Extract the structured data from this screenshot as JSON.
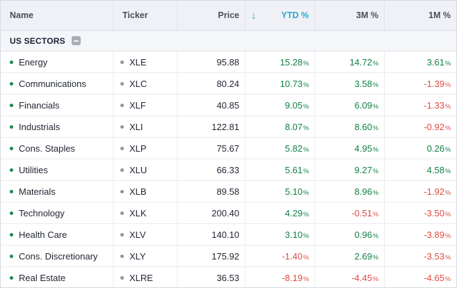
{
  "colors": {
    "sorted_accent": "#2aa8ce",
    "positive_value": "#0f8043",
    "negative_value": "#e04a41",
    "name_bullet": "#188a4c",
    "ticker_bullet": "#90949c"
  },
  "table": {
    "columns": [
      {
        "label": "Name"
      },
      {
        "label": "Ticker"
      },
      {
        "label": "Price"
      },
      {
        "label": "YTD %"
      },
      {
        "label": "3M %"
      },
      {
        "label": "1M %"
      }
    ],
    "sort": {
      "column": "YTD %",
      "direction": "descending",
      "icon": "↓"
    },
    "group": {
      "label": "US SECTORS"
    },
    "percent_suffix": "%",
    "rows": [
      {
        "name": "Energy",
        "ticker": "XLE",
        "price": "95.88",
        "ytd_pct": "15.28",
        "m3_pct": "14.72",
        "m1_pct": "3.61"
      },
      {
        "name": "Communications",
        "ticker": "XLC",
        "price": "80.24",
        "ytd_pct": "10.73",
        "m3_pct": "3.58",
        "m1_pct": "-1.39"
      },
      {
        "name": "Financials",
        "ticker": "XLF",
        "price": "40.85",
        "ytd_pct": "9.05",
        "m3_pct": "6.09",
        "m1_pct": "-1.33"
      },
      {
        "name": "Industrials",
        "ticker": "XLI",
        "price": "122.81",
        "ytd_pct": "8.07",
        "m3_pct": "8.60",
        "m1_pct": "-0.92"
      },
      {
        "name": "Cons. Staples",
        "ticker": "XLP",
        "price": "75.67",
        "ytd_pct": "5.82",
        "m3_pct": "4.95",
        "m1_pct": "0.26"
      },
      {
        "name": "Utilities",
        "ticker": "XLU",
        "price": "66.33",
        "ytd_pct": "5.61",
        "m3_pct": "9.27",
        "m1_pct": "4.58"
      },
      {
        "name": "Materials",
        "ticker": "XLB",
        "price": "89.58",
        "ytd_pct": "5.10",
        "m3_pct": "8.96",
        "m1_pct": "-1.92"
      },
      {
        "name": "Technology",
        "ticker": "XLK",
        "price": "200.40",
        "ytd_pct": "4.29",
        "m3_pct": "-0.51",
        "m1_pct": "-3.50"
      },
      {
        "name": "Health Care",
        "ticker": "XLV",
        "price": "140.10",
        "ytd_pct": "3.10",
        "m3_pct": "0.96",
        "m1_pct": "-3.89"
      },
      {
        "name": "Cons. Discretionary",
        "ticker": "XLY",
        "price": "175.92",
        "ytd_pct": "-1.40",
        "m3_pct": "2.69",
        "m1_pct": "-3.53"
      },
      {
        "name": "Real Estate",
        "ticker": "XLRE",
        "price": "36.53",
        "ytd_pct": "-8.19",
        "m3_pct": "-4.45",
        "m1_pct": "-4.65"
      }
    ]
  }
}
